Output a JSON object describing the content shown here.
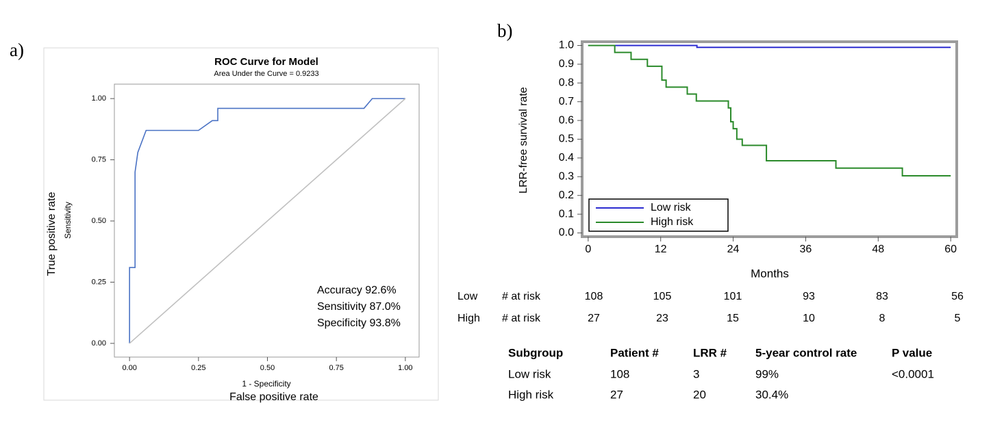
{
  "panel_labels": [
    "a)",
    "b)"
  ],
  "chart_data": [
    {
      "type": "line",
      "title": "ROC Curve for Model",
      "subtitle": "Area Under the Curve = 0.9233",
      "xlabel": "1 - Specificity",
      "ylabel": "Sensitivity",
      "x_outer_label": "False positive rate",
      "y_outer_label": "True positive rate",
      "annotations": [
        "Accuracy 92.6%",
        "Sensitivity 87.0%",
        "Specificity 93.8%"
      ],
      "annotation_color": "#3a3ae0",
      "xlim": [
        -0.055,
        1.05
      ],
      "ylim": [
        -0.056,
        1.059
      ],
      "xticks": [
        {
          "value": 0,
          "label": "0.00"
        },
        {
          "value": 0.25,
          "label": "0.25"
        },
        {
          "value": 0.5,
          "label": "0.50"
        },
        {
          "value": 0.75,
          "label": "0.75"
        },
        {
          "value": 1,
          "label": "1.00"
        }
      ],
      "yticks": [
        {
          "value": 0,
          "label": "0.00"
        },
        {
          "value": 0.25,
          "label": "0.25"
        },
        {
          "value": 0.5,
          "label": "0.50"
        },
        {
          "value": 0.75,
          "label": "0.75"
        },
        {
          "value": 1,
          "label": "1.00"
        }
      ],
      "grid": false,
      "series": [
        {
          "color": "#4a72c4",
          "x": [
            0,
            0,
            0.02,
            0.02,
            0.03,
            0.06,
            0.25,
            0.3,
            0.32,
            0.32,
            0.85,
            0.88,
            1.0
          ],
          "values": [
            0,
            0.31,
            0.31,
            0.7,
            0.78,
            0.87,
            0.87,
            0.91,
            0.91,
            0.96,
            0.96,
            1.0,
            1.0
          ]
        },
        {
          "color": "#c0c0c0",
          "x": [
            0,
            1
          ],
          "values": [
            0,
            1
          ]
        }
      ]
    },
    {
      "type": "line",
      "ylabel": "LRR-free survival rate",
      "xlabel": "Months",
      "xlim": [
        -1,
        61
      ],
      "ylim": [
        -0.02,
        1.02
      ],
      "xticks": [
        0,
        12,
        24,
        36,
        48,
        60
      ],
      "yticks": [
        {
          "value": 0,
          "label": "0.0"
        },
        0.1,
        0.2,
        0.3,
        0.4,
        0.5,
        0.6,
        0.7,
        0.8,
        0.9,
        {
          "value": 1,
          "label": "1.0"
        }
      ],
      "grid": false,
      "legend": "lower left",
      "series": [
        {
          "name": "Low risk",
          "color": "#2b2bd0",
          "x": [
            0,
            18,
            18,
            60
          ],
          "values": [
            1,
            1,
            0.99,
            0.99
          ]
        },
        {
          "name": "High risk",
          "color": "#2a8a2a",
          "x": [
            0,
            4.4,
            4.4,
            7.1,
            7.1,
            9.8,
            9.8,
            12.2,
            12.2,
            12.9,
            12.9,
            16.4,
            16.4,
            17.9,
            17.9,
            23.2,
            23.2,
            23.6,
            23.6,
            24.0,
            24.0,
            24.6,
            24.6,
            25.5,
            25.5,
            29.5,
            29.5,
            41,
            41,
            52,
            52,
            60
          ],
          "values": [
            1,
            1,
            0.963,
            0.963,
            0.926,
            0.926,
            0.889,
            0.889,
            0.815,
            0.815,
            0.778,
            0.778,
            0.741,
            0.741,
            0.704,
            0.704,
            0.667,
            0.667,
            0.593,
            0.593,
            0.556,
            0.556,
            0.5,
            0.5,
            0.467,
            0.467,
            0.385,
            0.385,
            0.346,
            0.346,
            0.305,
            0.305
          ]
        }
      ]
    }
  ],
  "risk_table": {
    "rows": [
      {
        "group": "Low",
        "label": "# at risk",
        "values": [
          "108",
          "105",
          "101",
          "93",
          "83",
          "56"
        ]
      },
      {
        "group": "High",
        "label": "# at risk",
        "values": [
          "27",
          "23",
          "15",
          "10",
          "8",
          "5"
        ]
      }
    ]
  },
  "summary_table": {
    "header": [
      "Subgroup",
      "Patient #",
      "LRR #",
      "5-year control rate",
      "P value"
    ],
    "rows": [
      [
        "Low risk",
        "108",
        "3",
        "99%",
        "<0.0001"
      ],
      [
        "High risk",
        "27",
        "20",
        "30.4%"
      ]
    ]
  }
}
